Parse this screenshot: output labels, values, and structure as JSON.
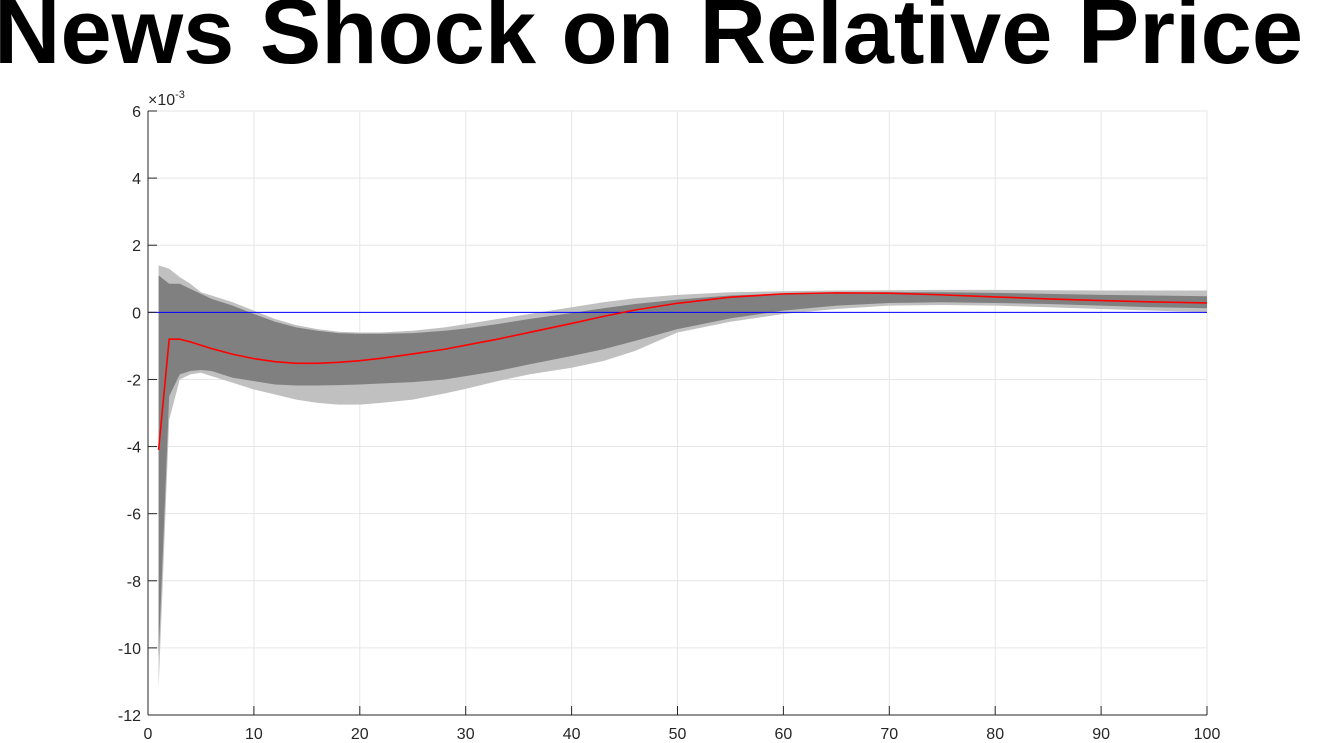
{
  "chart_data": {
    "type": "area",
    "title": "News Shock on Relative Price",
    "xlabel": "",
    "ylabel": "",
    "y_exponent_label": "×10",
    "y_exponent_power": "-3",
    "xlim": [
      0,
      100
    ],
    "ylim": [
      -12,
      6
    ],
    "xticks": [
      0,
      10,
      20,
      30,
      40,
      50,
      60,
      70,
      80,
      90,
      100
    ],
    "yticks": [
      -12,
      -10,
      -8,
      -6,
      -4,
      -2,
      0,
      2,
      4,
      6
    ],
    "grid": true,
    "zero_line_color": "#0000ff",
    "median_color": "#ff0000",
    "outer_band_color": "#c0c0c0",
    "inner_band_color": "#808080",
    "x": [
      1,
      2,
      3,
      4,
      5,
      6,
      8,
      10,
      12,
      14,
      16,
      18,
      20,
      22,
      25,
      28,
      30,
      33,
      36,
      40,
      43,
      46,
      50,
      55,
      60,
      65,
      70,
      75,
      80,
      85,
      90,
      95,
      100
    ],
    "median": [
      -4.1,
      -0.8,
      -0.8,
      -0.88,
      -0.98,
      -1.08,
      -1.25,
      -1.38,
      -1.47,
      -1.52,
      -1.52,
      -1.49,
      -1.44,
      -1.37,
      -1.24,
      -1.1,
      -0.98,
      -0.8,
      -0.6,
      -0.33,
      -0.12,
      0.07,
      0.27,
      0.45,
      0.55,
      0.58,
      0.57,
      0.52,
      0.46,
      0.4,
      0.35,
      0.31,
      0.28
    ],
    "outer_upper": [
      1.4,
      1.3,
      1.05,
      0.85,
      0.6,
      0.5,
      0.3,
      0.05,
      -0.2,
      -0.38,
      -0.5,
      -0.58,
      -0.6,
      -0.6,
      -0.55,
      -0.45,
      -0.35,
      -0.2,
      -0.05,
      0.15,
      0.3,
      0.42,
      0.52,
      0.6,
      0.63,
      0.65,
      0.66,
      0.67,
      0.67,
      0.66,
      0.65,
      0.65,
      0.65
    ],
    "outer_lower": [
      -11.2,
      -3.2,
      -2.0,
      -1.85,
      -1.8,
      -1.9,
      -2.1,
      -2.3,
      -2.45,
      -2.6,
      -2.7,
      -2.75,
      -2.75,
      -2.7,
      -2.6,
      -2.42,
      -2.28,
      -2.05,
      -1.85,
      -1.65,
      -1.45,
      -1.15,
      -0.6,
      -0.28,
      -0.05,
      0.1,
      0.2,
      0.22,
      0.2,
      0.15,
      0.1,
      0.05,
      0.0
    ],
    "inner_upper": [
      1.1,
      0.85,
      0.85,
      0.7,
      0.55,
      0.4,
      0.2,
      -0.05,
      -0.28,
      -0.45,
      -0.55,
      -0.62,
      -0.64,
      -0.64,
      -0.62,
      -0.55,
      -0.48,
      -0.35,
      -0.2,
      -0.02,
      0.12,
      0.25,
      0.38,
      0.5,
      0.56,
      0.59,
      0.6,
      0.6,
      0.58,
      0.55,
      0.52,
      0.5,
      0.48
    ],
    "inner_lower": [
      -10.3,
      -2.5,
      -1.85,
      -1.75,
      -1.72,
      -1.75,
      -1.95,
      -2.05,
      -2.15,
      -2.18,
      -2.18,
      -2.17,
      -2.15,
      -2.12,
      -2.08,
      -2.0,
      -1.9,
      -1.75,
      -1.55,
      -1.3,
      -1.1,
      -0.85,
      -0.5,
      -0.18,
      0.05,
      0.2,
      0.28,
      0.3,
      0.28,
      0.25,
      0.2,
      0.15,
      0.12
    ]
  }
}
